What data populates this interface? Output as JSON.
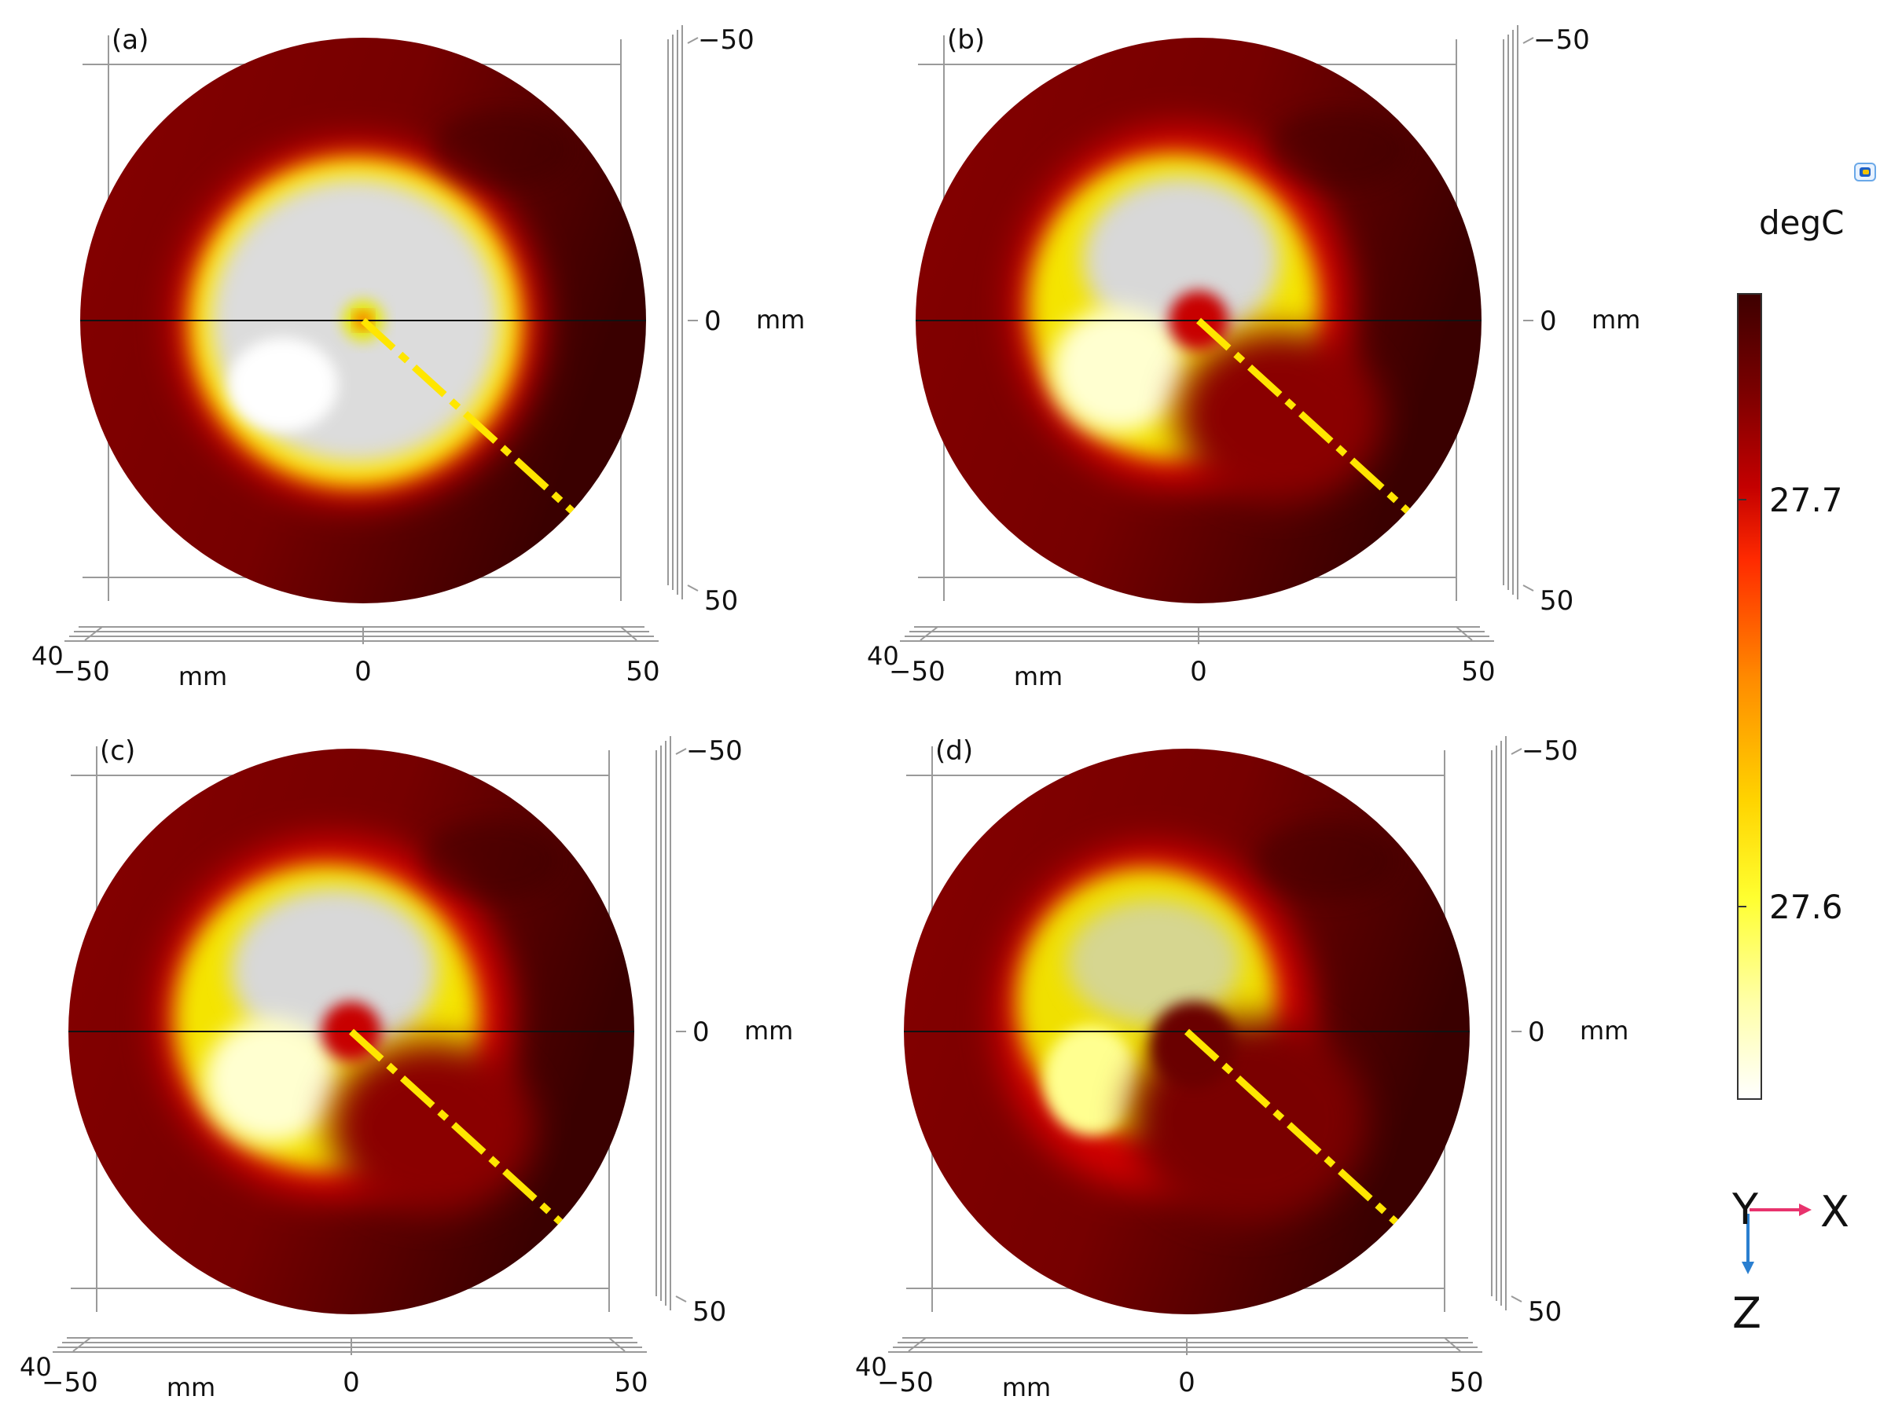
{
  "colorbar": {
    "unit": "degC",
    "tick_labels": [
      "27.7",
      "27.6"
    ],
    "colors": [
      "#3d0000",
      "#7a0000",
      "#c40000",
      "#ff2a00",
      "#ff8c00",
      "#ffd400",
      "#ffff30",
      "#ffffa8",
      "#ffffff"
    ]
  },
  "axes_triad": {
    "y_label": "Y",
    "x_label": "X",
    "z_label": "Z",
    "x_color": "#e8336d",
    "z_color": "#2a7fd0"
  },
  "logo_icon": "comsol-logo-icon",
  "panels": [
    {
      "label": "(a)",
      "pattern": "full-disc",
      "x_ticks": [
        "−50",
        "0",
        "50"
      ],
      "x_unit": "mm",
      "x_corner": "40",
      "z_ticks": [
        "−50",
        "0",
        "50"
      ],
      "z_unit": "mm"
    },
    {
      "label": "(b)",
      "pattern": "spiral-narrow",
      "x_ticks": [
        "−50",
        "0",
        "50"
      ],
      "x_unit": "mm",
      "x_corner": "40",
      "z_ticks": [
        "−50",
        "0",
        "50"
      ],
      "z_unit": "mm"
    },
    {
      "label": "(c)",
      "pattern": "spiral-wide",
      "x_ticks": [
        "−50",
        "0",
        "50"
      ],
      "x_unit": "mm",
      "x_corner": "40",
      "z_ticks": [
        "−50",
        "0",
        "50"
      ],
      "z_unit": "mm"
    },
    {
      "label": "(d)",
      "pattern": "crescent",
      "x_ticks": [
        "−50",
        "0",
        "50"
      ],
      "x_unit": "mm",
      "x_corner": "40",
      "z_ticks": [
        "−50",
        "0",
        "50"
      ],
      "z_unit": "mm"
    }
  ]
}
